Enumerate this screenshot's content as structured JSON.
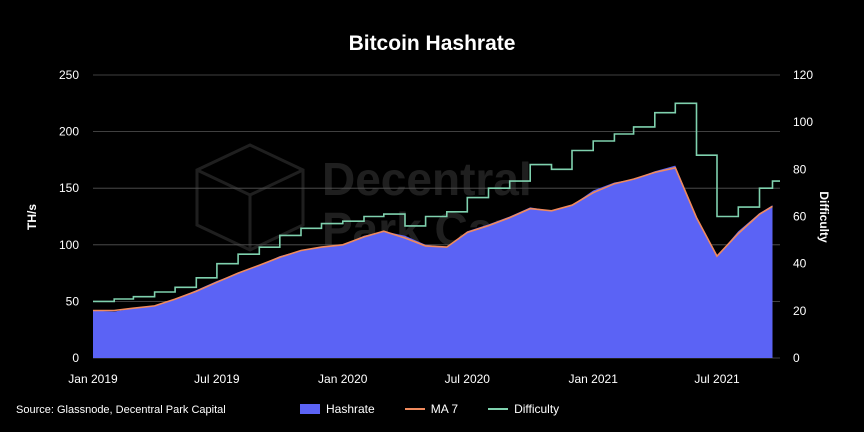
{
  "chart_data": {
    "type": "area",
    "title": "Bitcoin Hashrate",
    "ylabel": "TH/s",
    "y2label": "Difficulty",
    "xlim": [
      "2019-01-01",
      "2021-10-01"
    ],
    "ylim": [
      0,
      250
    ],
    "y2lim": [
      0,
      120
    ],
    "x_ticks": [
      "2019-01-01",
      "2019-07-01",
      "2020-01-01",
      "2020-07-01",
      "2021-01-01",
      "2021-07-01"
    ],
    "x_tick_labels": [
      "Jan 2019",
      "Jul 2019",
      "Jan 2020",
      "Jul 2020",
      "Jan 2021",
      "Jul 2021"
    ],
    "y_ticks": [
      0,
      50,
      100,
      150,
      200,
      250
    ],
    "y2_ticks": [
      0,
      20,
      40,
      60,
      80,
      100,
      120
    ],
    "grid": true,
    "legend_position": "bottom",
    "colors": {
      "hashrate": "#5b63f5",
      "ma7": "#f08a5d",
      "difficulty": "#7fd1ae"
    },
    "series": [
      {
        "name": "Hashrate",
        "axis": "left",
        "x": [
          "2019-01-01",
          "2019-02-01",
          "2019-03-01",
          "2019-04-01",
          "2019-05-01",
          "2019-06-01",
          "2019-07-01",
          "2019-08-01",
          "2019-09-01",
          "2019-10-01",
          "2019-11-01",
          "2019-12-01",
          "2020-01-01",
          "2020-02-01",
          "2020-03-01",
          "2020-04-01",
          "2020-05-01",
          "2020-06-01",
          "2020-07-01",
          "2020-08-01",
          "2020-09-01",
          "2020-10-01",
          "2020-11-01",
          "2020-12-01",
          "2021-01-01",
          "2021-02-01",
          "2021-03-01",
          "2021-04-01",
          "2021-05-01",
          "2021-06-01",
          "2021-07-01",
          "2021-08-01",
          "2021-09-01",
          "2021-09-20"
        ],
        "values": [
          42,
          41,
          44,
          46,
          52,
          60,
          68,
          75,
          82,
          90,
          95,
          98,
          100,
          108,
          112,
          108,
          100,
          98,
          112,
          118,
          125,
          133,
          130,
          135,
          148,
          155,
          158,
          165,
          170,
          125,
          90,
          112,
          128,
          135
        ]
      },
      {
        "name": "MA 7",
        "axis": "left",
        "x": [
          "2019-01-01",
          "2019-02-01",
          "2019-03-01",
          "2019-04-01",
          "2019-05-01",
          "2019-06-01",
          "2019-07-01",
          "2019-08-01",
          "2019-09-01",
          "2019-10-01",
          "2019-11-01",
          "2019-12-01",
          "2020-01-01",
          "2020-02-01",
          "2020-03-01",
          "2020-04-01",
          "2020-05-01",
          "2020-06-01",
          "2020-07-01",
          "2020-08-01",
          "2020-09-01",
          "2020-10-01",
          "2020-11-01",
          "2020-12-01",
          "2021-01-01",
          "2021-02-01",
          "2021-03-01",
          "2021-04-01",
          "2021-05-01",
          "2021-06-01",
          "2021-07-01",
          "2021-08-01",
          "2021-09-01",
          "2021-09-20"
        ],
        "values": [
          42,
          42,
          44,
          46,
          52,
          59,
          67,
          75,
          82,
          89,
          95,
          98,
          100,
          107,
          112,
          106,
          99,
          98,
          111,
          117,
          124,
          132,
          130,
          135,
          146,
          154,
          158,
          164,
          168,
          124,
          90,
          110,
          127,
          134
        ]
      },
      {
        "name": "Difficulty",
        "axis": "right",
        "type": "step",
        "x": [
          "2019-01-01",
          "2019-02-01",
          "2019-03-01",
          "2019-04-01",
          "2019-05-01",
          "2019-06-01",
          "2019-07-01",
          "2019-08-01",
          "2019-09-01",
          "2019-10-01",
          "2019-11-01",
          "2019-12-01",
          "2020-01-01",
          "2020-02-01",
          "2020-03-01",
          "2020-04-01",
          "2020-05-01",
          "2020-06-01",
          "2020-07-01",
          "2020-08-01",
          "2020-09-01",
          "2020-10-01",
          "2020-11-01",
          "2020-12-01",
          "2021-01-01",
          "2021-02-01",
          "2021-03-01",
          "2021-04-01",
          "2021-05-01",
          "2021-06-01",
          "2021-07-01",
          "2021-08-01",
          "2021-09-01",
          "2021-09-20"
        ],
        "values": [
          24,
          25,
          26,
          28,
          30,
          34,
          40,
          44,
          47,
          52,
          55,
          57,
          58,
          60,
          61,
          56,
          60,
          62,
          68,
          72,
          75,
          82,
          80,
          88,
          92,
          95,
          98,
          104,
          108,
          86,
          60,
          64,
          72,
          75
        ]
      }
    ]
  },
  "source": "Source: Glassnode, Decentral Park Capital",
  "legend": {
    "hashrate": "Hashrate",
    "ma7": "MA 7",
    "difficulty": "Difficulty"
  }
}
